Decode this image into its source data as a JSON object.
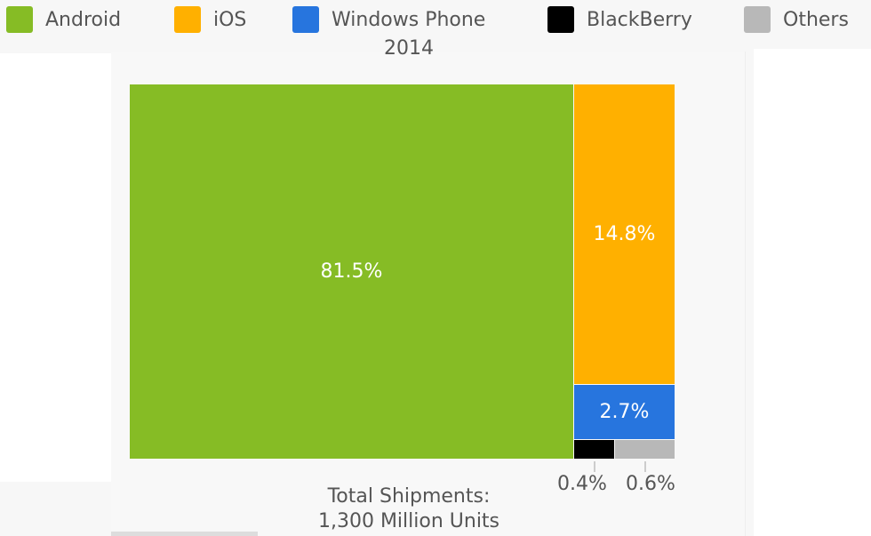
{
  "chart_data": {
    "type": "treemap",
    "title": "2014",
    "legend_position": "top",
    "series": [
      {
        "name": "Android",
        "value": 81.5,
        "label": "81.5%",
        "color": "#86bc25"
      },
      {
        "name": "iOS",
        "value": 14.8,
        "label": "14.8%",
        "color": "#ffb000"
      },
      {
        "name": "Windows Phone",
        "value": 2.7,
        "label": "2.7%",
        "color": "#2775de"
      },
      {
        "name": "BlackBerry",
        "value": 0.4,
        "label": "0.4%",
        "color": "#000000"
      },
      {
        "name": "Others",
        "value": 0.6,
        "label": "0.6%",
        "color": "#b8b8b8"
      }
    ],
    "footer_line1": "Total Shipments:",
    "footer_line2": "1,300 Million Units"
  }
}
